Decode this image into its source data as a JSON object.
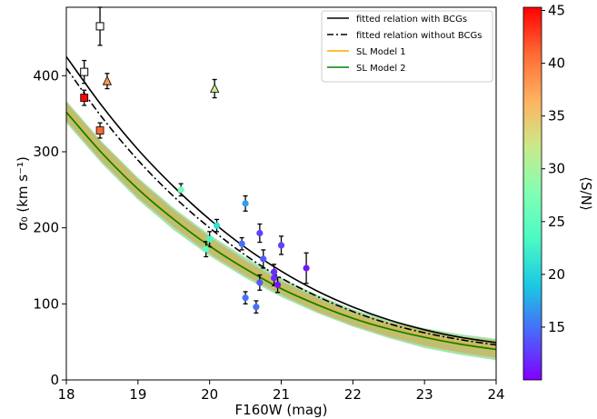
{
  "chart_data": {
    "type": "scatter",
    "title": "",
    "xlabel": "F160W (mag)",
    "ylabel": "σ₀ (km s⁻¹)",
    "xlim": [
      18,
      24
    ],
    "ylim": [
      0,
      490
    ],
    "xticks": [
      18,
      19,
      20,
      21,
      22,
      23,
      24
    ],
    "yticks": [
      0,
      100,
      200,
      300,
      400
    ],
    "grid": false,
    "legend_position": "top-right",
    "legend": [
      {
        "label": "fitted relation with BCGs",
        "style": "solid",
        "color": "#000000"
      },
      {
        "label": "fitted relation without BCGs",
        "style": "dashdot",
        "color": "#000000"
      },
      {
        "label": "SL Model 1",
        "style": "solid",
        "color": "#ffa500"
      },
      {
        "label": "SL Model 2",
        "style": "solid",
        "color": "#008000"
      }
    ],
    "colorbar": {
      "label": "⟨S/N⟩",
      "min": 10,
      "max": 45.3,
      "ticks": [
        15,
        20,
        25,
        30,
        35,
        40,
        45
      ],
      "colormap": "rainbow"
    },
    "series": [
      {
        "name": "fitted relation with BCGs",
        "type": "line",
        "color": "#000000",
        "x": [
          18.0,
          18.5,
          19.0,
          19.5,
          20.0,
          20.5,
          21.0,
          21.5,
          22.0,
          22.5,
          23.0,
          23.5,
          24.0
        ],
        "y": [
          425,
          360,
          303,
          254,
          211,
          174,
          143,
          117,
          96,
          79,
          66,
          56,
          49
        ]
      },
      {
        "name": "fitted relation without BCGs",
        "type": "line",
        "color": "#000000",
        "x": [
          18.0,
          18.5,
          19.0,
          19.5,
          20.0,
          20.5,
          21.0,
          21.5,
          22.0,
          22.5,
          23.0,
          23.5,
          24.0
        ],
        "y": [
          410,
          345,
          289,
          241,
          200,
          164,
          134,
          110,
          90,
          74,
          62,
          53,
          46
        ]
      },
      {
        "name": "SL Model 1",
        "type": "line",
        "color": "#ffa500",
        "x": [
          18.0,
          18.5,
          19.0,
          19.5,
          20.0,
          20.5,
          21.0,
          21.5,
          22.0,
          22.5,
          23.0,
          23.5,
          24.0
        ],
        "y": [
          353,
          299,
          252,
          212,
          177,
          147,
          121,
          100,
          82,
          68,
          57,
          48,
          41
        ],
        "band_low": [
          341,
          287,
          240,
          201,
          166,
          137,
          112,
          90,
          72,
          57,
          45,
          36,
          29
        ],
        "band_high": [
          365,
          311,
          264,
          223,
          188,
          157,
          130,
          108,
          90,
          76,
          66,
          57,
          52
        ]
      },
      {
        "name": "SL Model 2",
        "type": "line",
        "color": "#008000",
        "x": [
          18.0,
          18.5,
          19.0,
          19.5,
          20.0,
          20.5,
          21.0,
          21.5,
          22.0,
          22.5,
          23.0,
          23.5,
          24.0
        ],
        "y": [
          352,
          298,
          251,
          211,
          176,
          146,
          120,
          99,
          81,
          67,
          56,
          47,
          40
        ],
        "band_low": [
          338,
          284,
          237,
          197,
          163,
          134,
          109,
          88,
          70,
          55,
          42,
          33,
          26
        ],
        "band_high": [
          367,
          313,
          266,
          226,
          191,
          161,
          134,
          112,
          93,
          79,
          68,
          60,
          54
        ]
      },
      {
        "name": "",
        "type": "scatter",
        "marker": "circle",
        "x": [
          19.6,
          19.95,
          20.1,
          20.5,
          20.45,
          20.7,
          20.5,
          20.65,
          20.7,
          20.75,
          20.9,
          20.9,
          20.95,
          21.0,
          21.35,
          20.0
        ],
        "y": [
          250,
          172,
          203,
          232,
          179,
          193,
          108,
          96,
          128,
          159,
          142,
          134,
          125,
          177,
          147,
          185
        ],
        "yerr": [
          8,
          10,
          8,
          10,
          8,
          12,
          8,
          8,
          10,
          12,
          10,
          10,
          10,
          12,
          20,
          10
        ],
        "color_value": [
          27,
          25,
          21,
          17,
          15,
          13,
          15,
          15,
          14,
          14,
          12,
          12,
          11,
          13,
          11,
          23
        ]
      },
      {
        "name": "",
        "type": "scatter",
        "marker": "square",
        "x": [
          18.25,
          18.47
        ],
        "y": [
          371,
          328
        ],
        "yerr": [
          10,
          10
        ],
        "color_value": [
          45,
          41
        ]
      },
      {
        "name": "",
        "type": "scatter",
        "marker": "triangle",
        "x": [
          18.57,
          20.07
        ],
        "y": [
          393,
          383
        ],
        "yerr": [
          10,
          12
        ],
        "color_value": [
          38,
          32
        ]
      },
      {
        "name": "",
        "type": "scatter",
        "marker": "open-square",
        "x": [
          18.25,
          18.47
        ],
        "y": [
          405,
          465
        ],
        "yerr": [
          15,
          25
        ]
      }
    ]
  }
}
